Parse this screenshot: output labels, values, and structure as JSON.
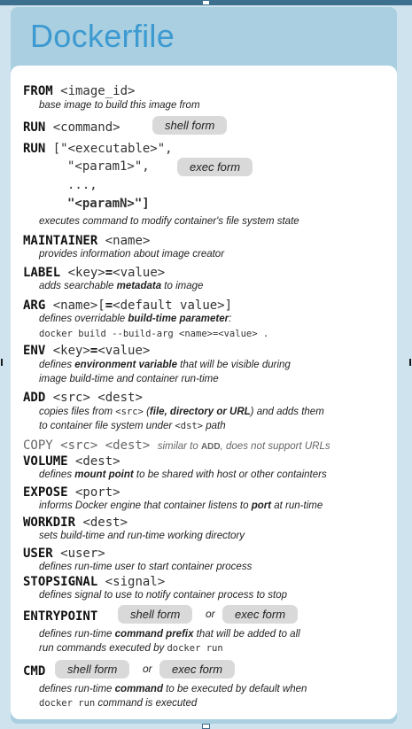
{
  "title": "Dockerfile",
  "entries": {
    "from": {
      "kw": "FROM",
      "arg": " <image_id>",
      "desc": "base image to build this image from"
    },
    "run1": {
      "kw": "RUN",
      "arg": " <command>",
      "pill": "shell form"
    },
    "run2": {
      "kw": "RUN",
      "arg": " [\"<executable>\",",
      "line2": "\"<param1>\",",
      "line3": "...,",
      "line4": "\"<paramN>\"]",
      "pill": "exec form",
      "desc": "executes command to modify container's file system state"
    },
    "maintainer": {
      "kw": "MAINTAINER",
      "arg": " <name>",
      "desc": "provides information about image creator"
    },
    "label": {
      "kw": "LABEL",
      "arg1": " <key>",
      "eq": "=",
      "arg2": "<value>",
      "desc1": "adds searchable ",
      "desc_b": "metadata",
      "desc2": " to image"
    },
    "arg": {
      "kw": "ARG",
      "arg1": " <name>[",
      "eq": "=",
      "arg2": "<default value>]",
      "desc1": "defines overridable ",
      "desc_b": "build-time parameter",
      "desc2": ":",
      "example": "docker build --build-arg <name>=<value> ."
    },
    "env": {
      "kw": "ENV",
      "arg1": " <key>",
      "eq": "=",
      "arg2": "<value>",
      "desc1": "defines ",
      "desc_b": "environment variable",
      "desc2": " that will be visible during",
      "desc3": "image build-time and container run-time"
    },
    "add": {
      "kw": "ADD",
      "arg": " <src> <dest>",
      "desc1": "copies files from ",
      "desc_mono": "<src>",
      "desc2": " (",
      "desc_b": "file, directory or URL",
      "desc3": ") and adds them",
      "desc4": "to container file system under ",
      "desc_mono2": "<dst>",
      "desc5": " path"
    },
    "copy": {
      "kw": "COPY",
      "arg": " <src> <dest>",
      "desc1": "similar to ",
      "desc_b": "ADD",
      "desc2": ", does not support URLs"
    },
    "volume": {
      "kw": "VOLUME",
      "arg": " <dest>",
      "desc1": "defines ",
      "desc_b": "mount point",
      "desc2": " to be shared with host or other containters"
    },
    "expose": {
      "kw": "EXPOSE",
      "arg": " <port>",
      "desc1": "informs Docker engine that container listens to ",
      "desc_b": "port",
      "desc2": " at run-time"
    },
    "workdir": {
      "kw": "WORKDIR",
      "arg": " <dest>",
      "desc": "sets build-time and run-time working directory"
    },
    "user": {
      "kw": "USER",
      "arg": " <user>",
      "desc": "defines run-time user to start container process"
    },
    "stopsignal": {
      "kw": "STOPSIGNAL",
      "arg": " <signal>",
      "desc": "defines signal to use to notify container process to stop"
    },
    "entrypoint": {
      "kw": "ENTRYPOINT",
      "pill1": "shell form",
      "or": "or",
      "pill2": "exec form",
      "desc1": "defines run-time ",
      "desc_b": "command prefix",
      "desc2": " that will be added to all",
      "desc3": "run commands executed by ",
      "desc_mono": "docker run"
    },
    "cmd": {
      "kw": "CMD",
      "pill1": "shell form",
      "or": "or",
      "pill2": "exec form",
      "desc1": "defines run-time ",
      "desc_b": "command",
      "desc2": " to be executed by default  when",
      "desc_mono": "docker run",
      "desc3": " command is executed"
    }
  }
}
